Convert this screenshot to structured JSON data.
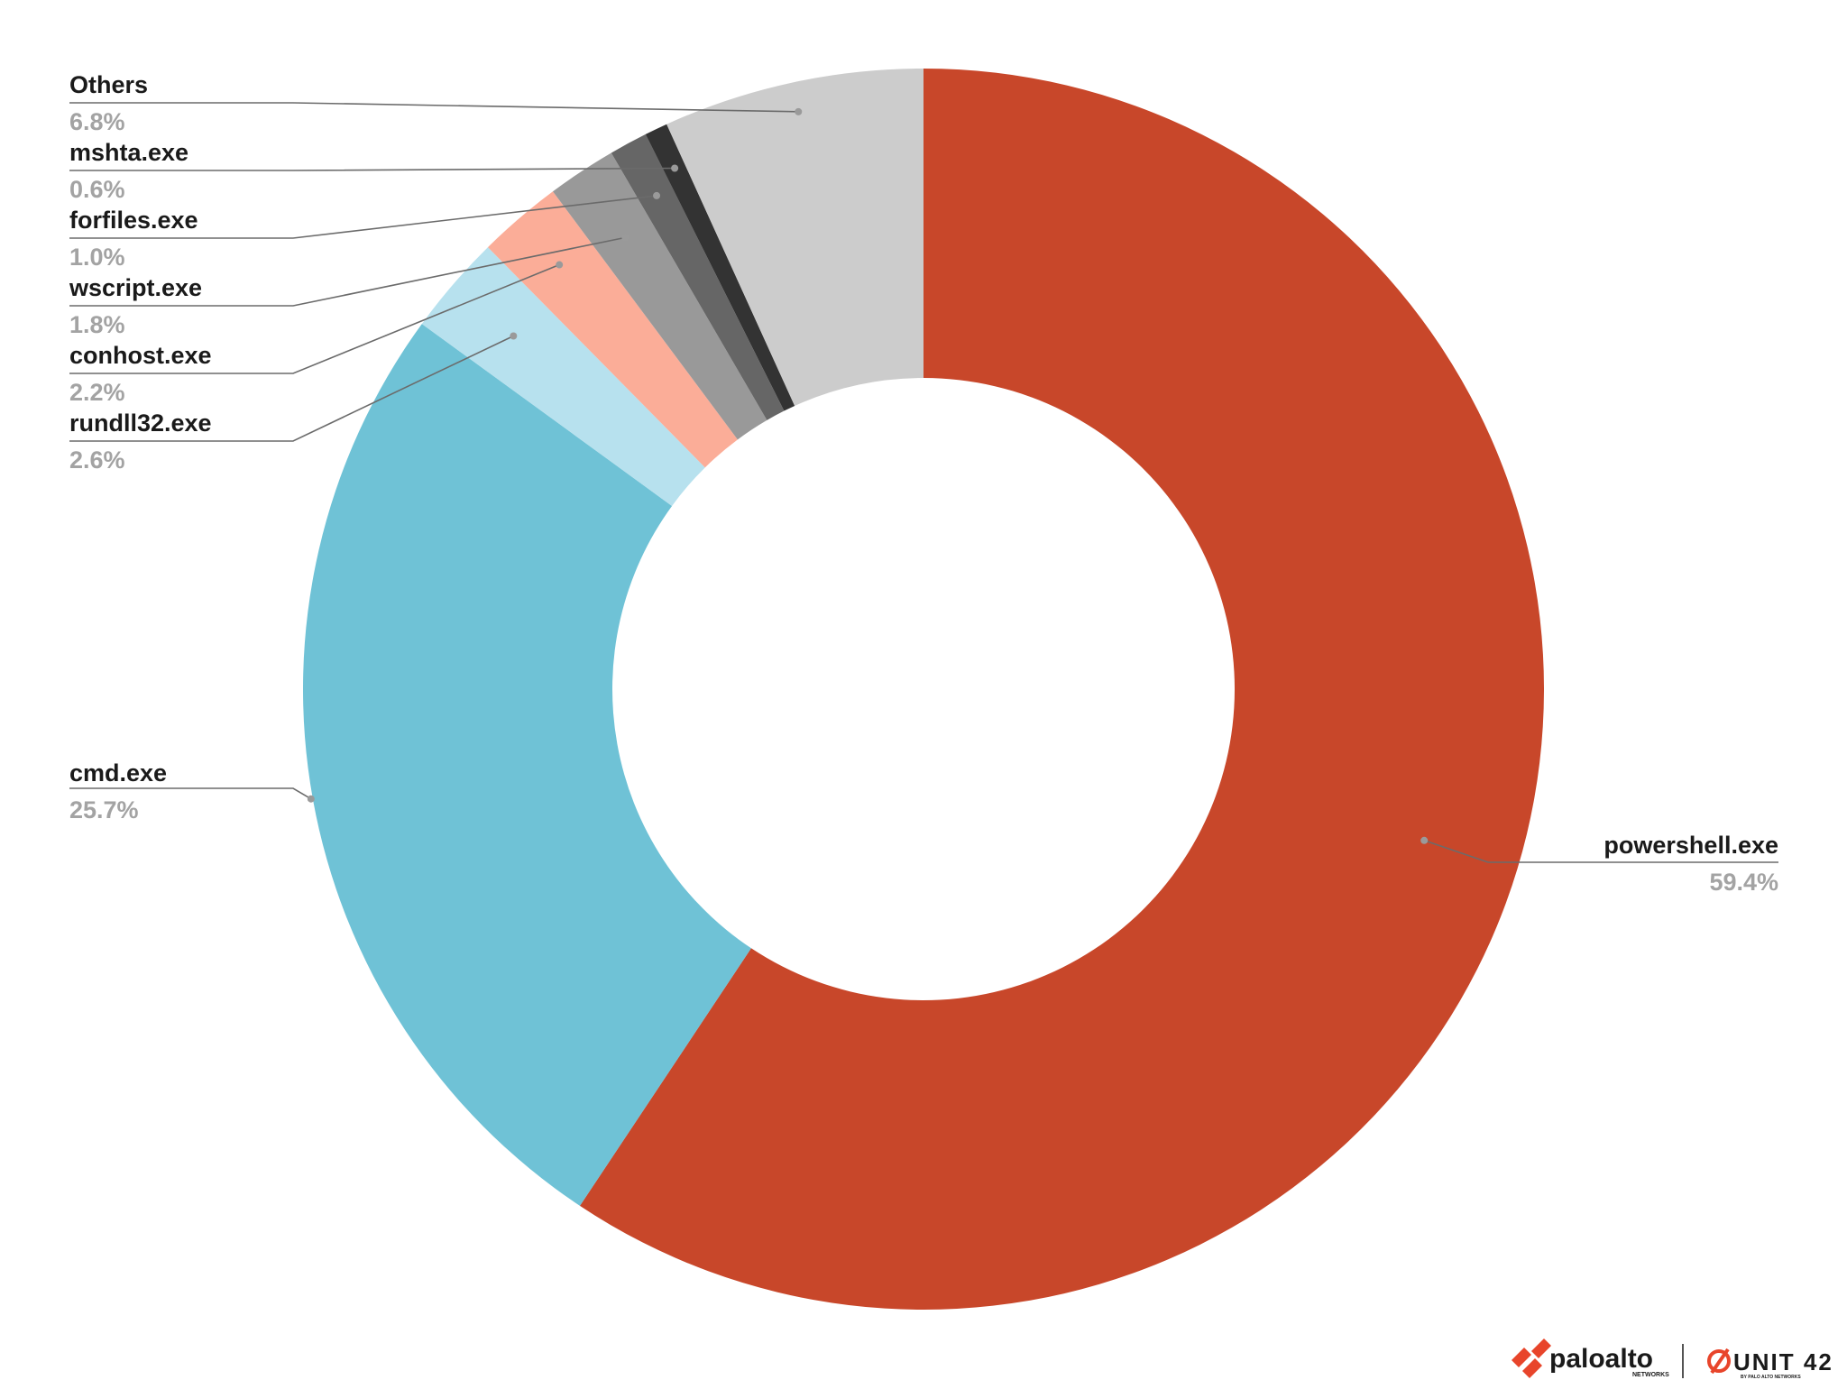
{
  "chart_data": {
    "type": "pie",
    "subtype": "donut",
    "title": "",
    "slices": [
      {
        "label": "powershell.exe",
        "value": 59.4,
        "pct_text": "59.4%",
        "color": "#C8472A"
      },
      {
        "label": "cmd.exe",
        "value": 25.7,
        "pct_text": "25.7%",
        "color": "#6FC2D6"
      },
      {
        "label": "rundll32.exe",
        "value": 2.6,
        "pct_text": "2.6%",
        "color": "#B7E1EE"
      },
      {
        "label": "conhost.exe",
        "value": 2.2,
        "pct_text": "2.2%",
        "color": "#FBAD98"
      },
      {
        "label": "wscript.exe",
        "value": 1.8,
        "pct_text": "1.8%",
        "color": "#999999"
      },
      {
        "label": "forfiles.exe",
        "value": 1.0,
        "pct_text": "1.0%",
        "color": "#666666"
      },
      {
        "label": "mshta.exe",
        "value": 0.6,
        "pct_text": "0.6%",
        "color": "#333333"
      },
      {
        "label": "Others",
        "value": 6.8,
        "pct_text": "6.8%",
        "color": "#CCCCCC"
      }
    ]
  },
  "branding": {
    "paloalto_text": "paloalto",
    "paloalto_sub": "NETWORKS",
    "unit42_text": "UNIT 42",
    "unit42_sub": "BY PALO ALTO NETWORKS",
    "accent_color": "#E8452B"
  }
}
